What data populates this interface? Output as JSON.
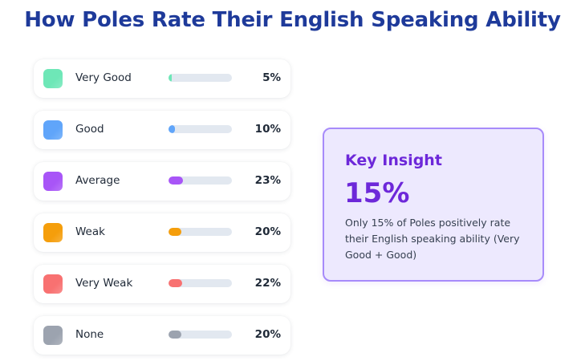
{
  "chart_data": {
    "type": "bar",
    "title": "How Poles Rate Their English Speaking Ability",
    "categories": [
      "Very Good",
      "Good",
      "Average",
      "Weak",
      "Very Weak",
      "None"
    ],
    "values": [
      5,
      10,
      23,
      20,
      22,
      20
    ],
    "value_labels": [
      "5%",
      "10%",
      "23%",
      "20%",
      "22%",
      "20%"
    ],
    "colors": [
      "#6ee7b7",
      "#60a5fa",
      "#a855f7",
      "#f59e0b",
      "#f87171",
      "#9ca3af"
    ],
    "xlim": [
      0,
      100
    ],
    "unit": "%"
  },
  "insight": {
    "title": "Key Insight",
    "value": "15%",
    "text": "Only 15% of Poles positively rate their English speaking ability (Very Good + Good)"
  }
}
